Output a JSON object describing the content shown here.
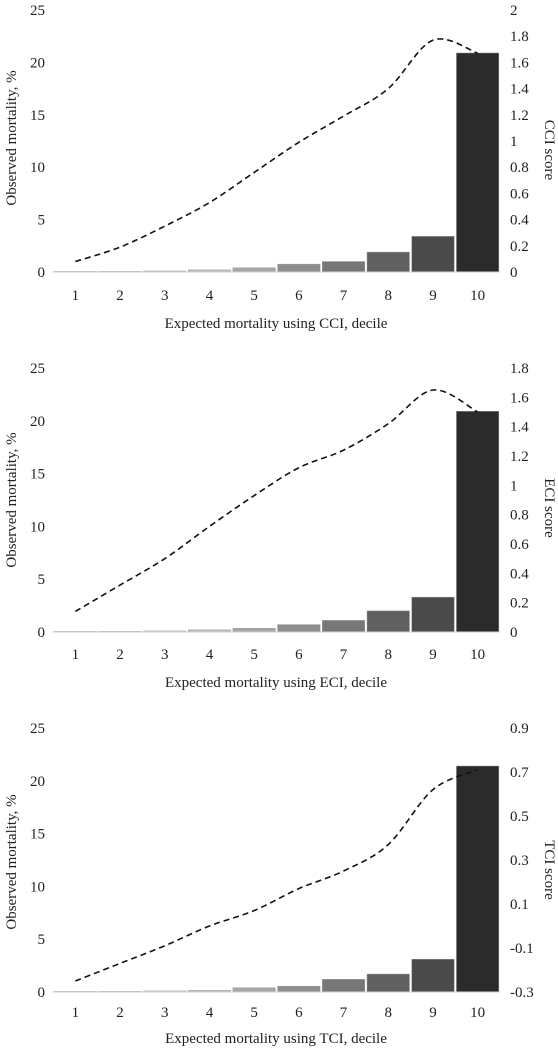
{
  "chart_data": [
    {
      "type": "bar",
      "categories": [
        "1",
        "2",
        "3",
        "4",
        "5",
        "6",
        "7",
        "8",
        "9",
        "10"
      ],
      "series": [
        {
          "name": "",
          "type": "bar",
          "axis": "left",
          "values": [
            0.0,
            0.02,
            0.1,
            0.2,
            0.4,
            0.75,
            1.0,
            1.9,
            3.4,
            20.9
          ]
        },
        {
          "name": "",
          "type": "line",
          "axis": "right",
          "style": "dashed",
          "values": [
            0.08,
            0.19,
            0.35,
            0.53,
            0.76,
            0.99,
            1.19,
            1.4,
            1.77,
            1.67
          ]
        }
      ],
      "xlabel": "Expected mortality using CCI, decile",
      "ylabel": "Observed mortality, %",
      "y2label": "CCI score",
      "ylim": [
        0,
        25
      ],
      "y2lim": [
        0,
        2
      ],
      "yticks": [
        "0",
        "5",
        "10",
        "15",
        "20",
        "25"
      ],
      "y2ticks": [
        "0",
        "0.2",
        "0.4",
        "0.6",
        "0.8",
        "1",
        "1.2",
        "1.4",
        "1.6",
        "1.8",
        "2"
      ],
      "grid": false,
      "colors": {
        "bars": [
          "#f7f7f7",
          "#ececec",
          "#d6d6d6",
          "#bdbdbd",
          "#a6a6a6",
          "#8e8e8e",
          "#777777",
          "#606060",
          "#4a4a4a",
          "#2b2b2b"
        ],
        "line": "#111111"
      }
    },
    {
      "type": "bar",
      "categories": [
        "1",
        "2",
        "3",
        "4",
        "5",
        "6",
        "7",
        "8",
        "9",
        "10"
      ],
      "series": [
        {
          "name": "",
          "type": "bar",
          "axis": "left",
          "values": [
            0.0,
            0.05,
            0.1,
            0.2,
            0.35,
            0.7,
            1.1,
            2.0,
            3.3,
            20.9
          ]
        },
        {
          "name": "",
          "type": "line",
          "axis": "right",
          "style": "dashed",
          "values": [
            0.14,
            0.32,
            0.5,
            0.72,
            0.93,
            1.12,
            1.24,
            1.42,
            1.65,
            1.5
          ]
        }
      ],
      "xlabel": "Expected mortality using ECI, decile",
      "ylabel": "Observed mortality, %",
      "y2label": "ECI score",
      "ylim": [
        0,
        25
      ],
      "y2lim": [
        0,
        1.8
      ],
      "yticks": [
        "0",
        "5",
        "10",
        "15",
        "20",
        "25"
      ],
      "y2ticks": [
        "0",
        "0.2",
        "0.4",
        "0.6",
        "0.8",
        "1",
        "1.2",
        "1.4",
        "1.6",
        "1.8"
      ],
      "grid": false,
      "colors": {
        "bars": [
          "#f7f7f7",
          "#ececec",
          "#d6d6d6",
          "#bdbdbd",
          "#a6a6a6",
          "#8e8e8e",
          "#777777",
          "#606060",
          "#4a4a4a",
          "#2b2b2b"
        ],
        "line": "#111111"
      }
    },
    {
      "type": "bar",
      "categories": [
        "1",
        "2",
        "3",
        "4",
        "5",
        "6",
        "7",
        "8",
        "9",
        "10"
      ],
      "series": [
        {
          "name": "",
          "type": "bar",
          "axis": "left",
          "values": [
            0.0,
            0.05,
            0.1,
            0.15,
            0.4,
            0.55,
            1.2,
            1.7,
            3.1,
            21.4
          ]
        },
        {
          "name": "",
          "type": "line",
          "axis": "right",
          "style": "dashed",
          "values": [
            -0.25,
            -0.17,
            -0.09,
            0.0,
            0.07,
            0.17,
            0.25,
            0.37,
            0.62,
            0.71
          ]
        }
      ],
      "xlabel": "Expected mortality using TCI, decile",
      "ylabel": "Observed mortality, %",
      "y2label": "TCI score",
      "ylim": [
        0,
        25
      ],
      "y2lim": [
        -0.3,
        0.9
      ],
      "yticks": [
        "0",
        "5",
        "10",
        "15",
        "20",
        "25"
      ],
      "y2ticks": [
        "-0.3",
        "-0.1",
        "0.1",
        "0.3",
        "0.5",
        "0.7",
        "0.9"
      ],
      "grid": false,
      "colors": {
        "bars": [
          "#f7f7f7",
          "#ececec",
          "#d6d6d6",
          "#bdbdbd",
          "#a6a6a6",
          "#8e8e8e",
          "#777777",
          "#606060",
          "#4a4a4a",
          "#2b2b2b"
        ],
        "line": "#111111"
      }
    }
  ]
}
